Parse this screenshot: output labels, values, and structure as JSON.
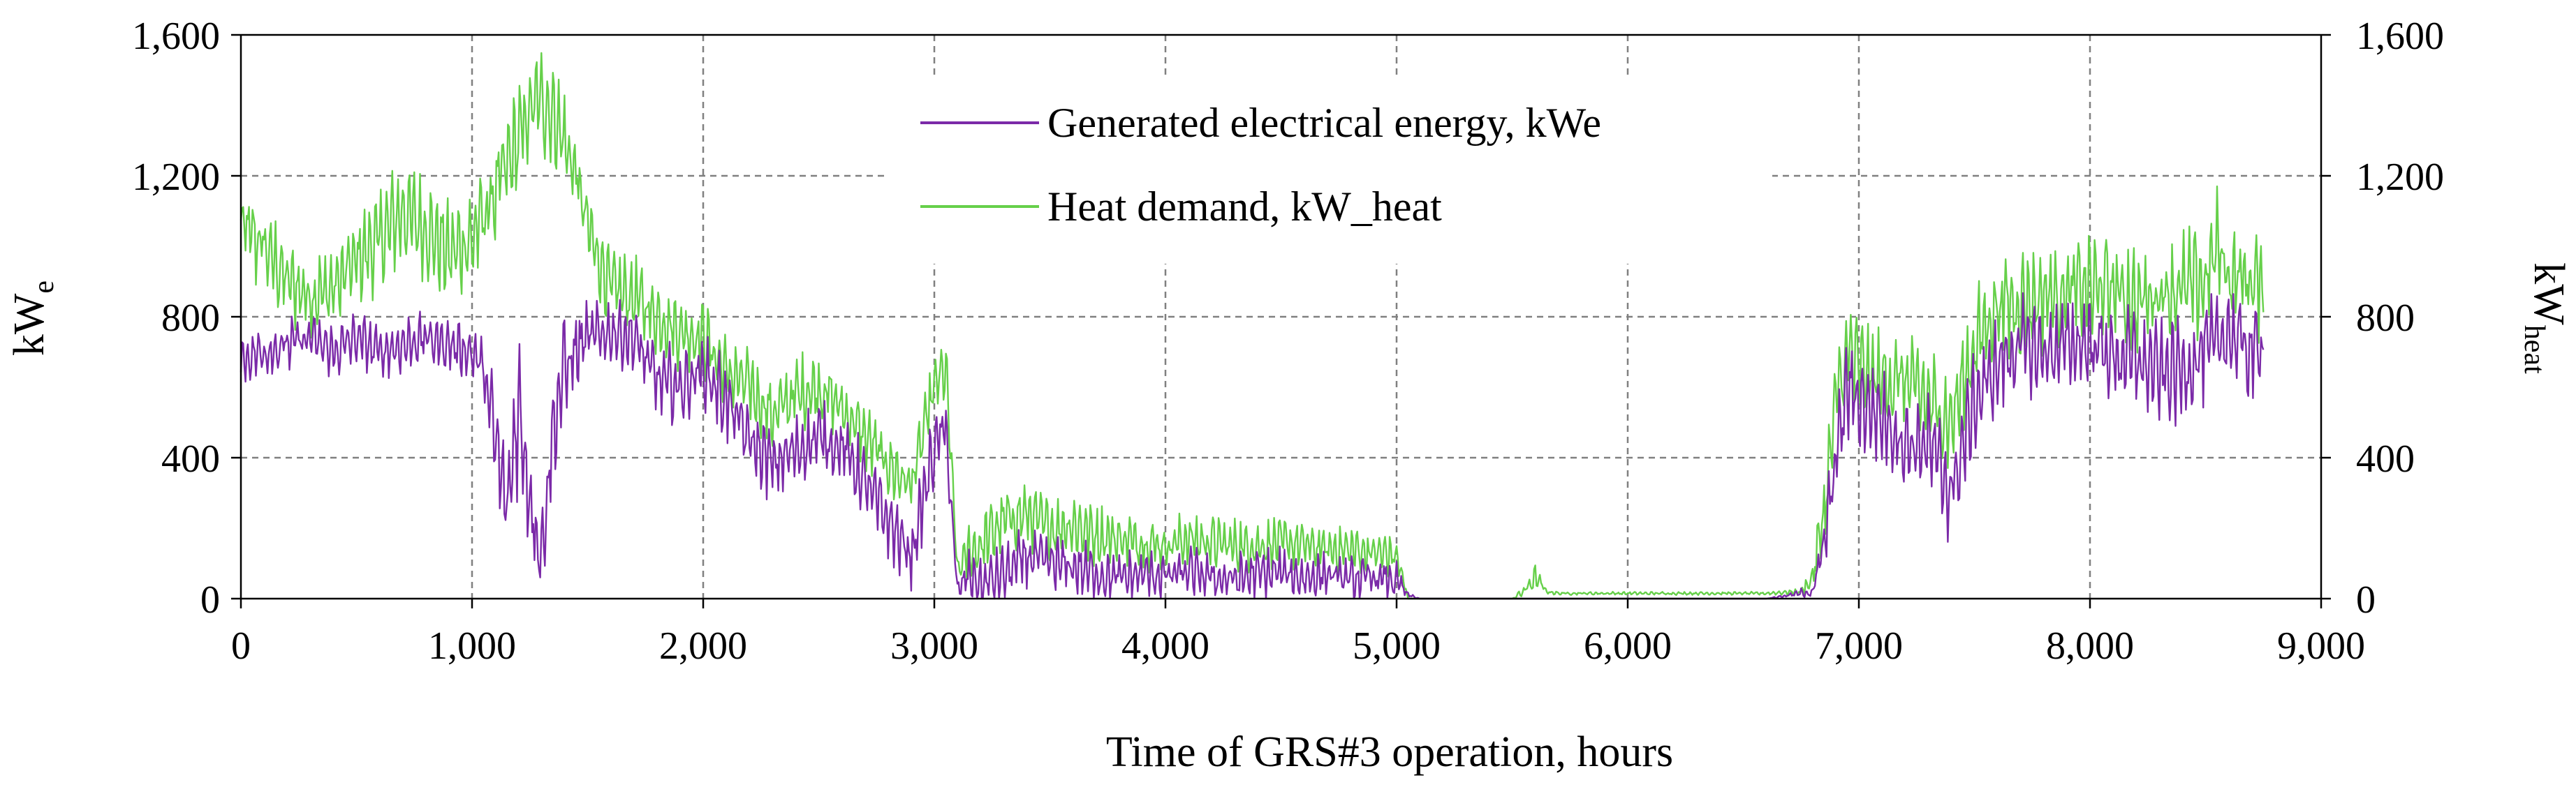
{
  "chart_data": {
    "type": "line",
    "title": "",
    "xlabel": "Time of GRS#3 operation, hours",
    "ylabel": {
      "base": "kW",
      "sub": "e"
    },
    "y2label": {
      "base": "kW",
      "sub": "heat"
    },
    "xlim": [
      0,
      9000
    ],
    "ylim": [
      0,
      1600
    ],
    "y2lim": [
      0,
      1600
    ],
    "x_ticks": [
      "0",
      "1,000",
      "2,000",
      "3,000",
      "4,000",
      "5,000",
      "6,000",
      "7,000",
      "8,000",
      "9,000"
    ],
    "y_ticks": [
      "0",
      "400",
      "800",
      "1,200",
      "1,600"
    ],
    "y2_ticks": [
      "0",
      "400",
      "800",
      "1,200",
      "1,600"
    ],
    "grid": true,
    "legend_position": "top-center",
    "colors": {
      "electrical": "#7B2AA8",
      "heat": "#66D04A",
      "axis": "#000000",
      "grid": "#808080",
      "secondary_label": "#808080"
    },
    "series": [
      {
        "name": "Generated electrical energy, kWe",
        "key": "electrical",
        "x": [
          0,
          100,
          200,
          300,
          400,
          500,
          600,
          700,
          800,
          900,
          1000,
          1050,
          1100,
          1150,
          1200,
          1250,
          1300,
          1350,
          1400,
          1450,
          1500,
          1600,
          1700,
          1800,
          1900,
          2000,
          2100,
          2200,
          2300,
          2400,
          2500,
          2600,
          2700,
          2800,
          2900,
          3000,
          3050,
          3100,
          3150,
          3200,
          3300,
          3400,
          3500,
          3600,
          3700,
          3800,
          3900,
          4000,
          4100,
          4200,
          4300,
          4400,
          4500,
          4600,
          4700,
          4800,
          4900,
          5000,
          5050,
          5100,
          5300,
          5500,
          5600,
          5700,
          5800,
          6000,
          6200,
          6400,
          6600,
          6800,
          6850,
          6900,
          6950,
          7000,
          7100,
          7200,
          7300,
          7400,
          7500,
          7600,
          7700,
          7800,
          7900,
          8000,
          8100,
          8200,
          8300,
          8400,
          8500,
          8600,
          8700,
          8750
        ],
        "values": [
          680,
          700,
          720,
          740,
          700,
          740,
          700,
          720,
          740,
          720,
          700,
          650,
          450,
          250,
          550,
          300,
          120,
          480,
          650,
          700,
          740,
          760,
          740,
          620,
          600,
          650,
          560,
          450,
          380,
          420,
          460,
          430,
          330,
          220,
          120,
          430,
          480,
          20,
          70,
          40,
          70,
          120,
          100,
          90,
          70,
          60,
          70,
          65,
          75,
          60,
          55,
          70,
          75,
          60,
          70,
          55,
          60,
          50,
          10,
          0,
          0,
          0,
          0,
          0,
          0,
          0,
          0,
          0,
          0,
          20,
          150,
          400,
          600,
          560,
          520,
          440,
          440,
          300,
          560,
          660,
          720,
          700,
          720,
          730,
          690,
          680,
          640,
          650,
          700,
          760,
          690,
          720
        ],
        "spread": [
          90,
          80,
          90,
          80,
          90,
          80,
          90,
          90,
          80,
          80,
          90,
          120,
          180,
          200,
          260,
          220,
          150,
          160,
          180,
          150,
          110,
          100,
          110,
          130,
          120,
          120,
          130,
          120,
          120,
          110,
          110,
          120,
          110,
          120,
          110,
          130,
          100,
          30,
          80,
          80,
          90,
          100,
          90,
          90,
          90,
          80,
          80,
          80,
          80,
          80,
          80,
          80,
          80,
          80,
          70,
          70,
          70,
          60,
          10,
          0,
          0,
          0,
          0,
          0,
          0,
          0,
          0,
          0,
          0,
          20,
          100,
          160,
          180,
          160,
          160,
          160,
          160,
          170,
          150,
          150,
          150,
          150,
          150,
          160,
          160,
          160,
          160,
          170,
          160,
          150,
          160,
          150
        ]
      },
      {
        "name": "Heat demand, kW_heat",
        "key": "heat",
        "x": [
          0,
          100,
          200,
          300,
          400,
          500,
          600,
          700,
          800,
          900,
          1000,
          1100,
          1200,
          1250,
          1300,
          1350,
          1400,
          1450,
          1500,
          1600,
          1700,
          1800,
          1900,
          2000,
          2100,
          2200,
          2300,
          2400,
          2500,
          2600,
          2700,
          2800,
          2900,
          3000,
          3050,
          3100,
          3150,
          3200,
          3300,
          3400,
          3500,
          3600,
          3700,
          3800,
          3900,
          4000,
          4100,
          4200,
          4300,
          4400,
          4500,
          4600,
          4700,
          4800,
          4900,
          5000,
          5050,
          5100,
          5300,
          5500,
          5550,
          5600,
          5650,
          5700,
          5800,
          6000,
          6200,
          6400,
          6600,
          6750,
          6800,
          6850,
          6900,
          6950,
          7000,
          7100,
          7200,
          7300,
          7400,
          7500,
          7600,
          7700,
          7800,
          7900,
          8000,
          8100,
          8200,
          8300,
          8400,
          8500,
          8550,
          8600,
          8700,
          8750
        ],
        "values": [
          1050,
          1000,
          900,
          860,
          880,
          960,
          1020,
          1100,
          1050,
          980,
          1020,
          1150,
          1300,
          1380,
          1420,
          1380,
          1300,
          1200,
          1050,
          880,
          860,
          800,
          760,
          740,
          640,
          600,
          520,
          580,
          600,
          540,
          460,
          380,
          320,
          600,
          650,
          80,
          130,
          150,
          220,
          240,
          200,
          210,
          180,
          170,
          160,
          150,
          170,
          160,
          150,
          150,
          160,
          150,
          140,
          140,
          130,
          120,
          0,
          0,
          0,
          0,
          20,
          60,
          20,
          15,
          15,
          15,
          15,
          15,
          15,
          20,
          60,
          250,
          550,
          700,
          650,
          620,
          620,
          560,
          500,
          720,
          830,
          840,
          860,
          870,
          880,
          880,
          840,
          870,
          880,
          900,
          1000,
          920,
          900,
          880
        ],
        "spread": [
          170,
          150,
          140,
          140,
          140,
          150,
          160,
          170,
          160,
          160,
          160,
          170,
          180,
          180,
          180,
          170,
          170,
          170,
          150,
          130,
          130,
          120,
          120,
          120,
          120,
          120,
          120,
          120,
          120,
          110,
          110,
          110,
          100,
          110,
          100,
          30,
          100,
          110,
          110,
          110,
          100,
          100,
          100,
          90,
          90,
          90,
          90,
          90,
          90,
          80,
          80,
          80,
          80,
          80,
          80,
          80,
          0,
          0,
          0,
          0,
          20,
          40,
          10,
          5,
          5,
          5,
          5,
          5,
          5,
          10,
          60,
          150,
          200,
          180,
          170,
          170,
          170,
          170,
          160,
          180,
          180,
          180,
          180,
          180,
          180,
          180,
          180,
          180,
          180,
          180,
          180,
          170,
          170,
          170
        ]
      }
    ]
  }
}
